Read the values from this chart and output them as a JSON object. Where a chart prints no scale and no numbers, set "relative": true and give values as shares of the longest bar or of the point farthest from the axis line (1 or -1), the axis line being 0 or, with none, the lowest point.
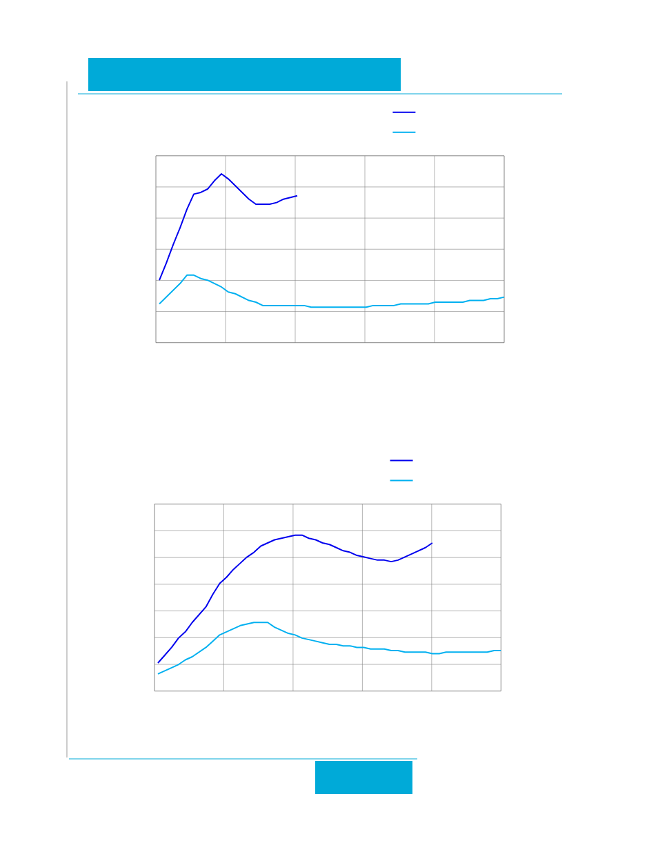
{
  "chart_data": [
    {
      "type": "line",
      "relative": true,
      "grid": true,
      "marker": "none",
      "line_style": "solid",
      "categories": [
        null,
        null,
        null,
        null,
        null,
        null,
        null,
        null,
        null,
        null,
        null,
        null,
        null,
        null,
        null,
        null,
        null,
        null,
        null,
        null,
        null,
        null,
        null,
        null,
        null,
        null,
        null,
        null,
        null,
        null,
        null,
        null,
        null,
        null,
        null,
        null,
        null,
        null,
        null,
        null,
        null,
        null,
        null,
        null,
        null,
        null,
        null,
        null,
        null,
        null,
        null
      ],
      "series": [
        {
          "color": "#0000ee",
          "values": [
            0.37,
            0.47,
            0.58,
            0.68,
            0.79,
            0.88,
            0.89,
            0.91,
            0.96,
            1,
            0.97,
            0.93,
            0.89,
            0.85,
            0.82,
            0.82,
            0.82,
            0.83,
            0.85,
            0.86,
            0.87,
            null,
            null,
            null,
            null,
            null,
            null,
            null,
            null,
            null,
            null,
            null,
            null,
            null,
            null,
            null,
            null,
            null,
            null,
            null,
            null,
            null,
            null,
            null,
            null,
            null,
            null,
            null,
            null,
            null,
            null
          ]
        },
        {
          "color": "#00b0f0",
          "values": [
            0.23,
            0.27,
            0.31,
            0.35,
            0.4,
            0.4,
            0.38,
            0.37,
            0.35,
            0.33,
            0.3,
            0.29,
            0.27,
            0.25,
            0.24,
            0.22,
            0.22,
            0.22,
            0.22,
            0.22,
            0.22,
            0.22,
            0.21,
            0.21,
            0.21,
            0.21,
            0.21,
            0.21,
            0.21,
            0.21,
            0.21,
            0.22,
            0.22,
            0.22,
            0.22,
            0.23,
            0.23,
            0.23,
            0.23,
            0.23,
            0.24,
            0.24,
            0.24,
            0.24,
            0.24,
            0.25,
            0.25,
            0.25,
            0.26,
            0.26,
            0.27
          ]
        }
      ]
    },
    {
      "type": "line",
      "relative": true,
      "grid": true,
      "marker": "none",
      "line_style": "solid",
      "categories": [
        null,
        null,
        null,
        null,
        null,
        null,
        null,
        null,
        null,
        null,
        null,
        null,
        null,
        null,
        null,
        null,
        null,
        null,
        null,
        null,
        null,
        null,
        null,
        null,
        null,
        null,
        null,
        null,
        null,
        null,
        null,
        null,
        null,
        null,
        null,
        null,
        null,
        null,
        null,
        null,
        null,
        null,
        null,
        null,
        null,
        null,
        null,
        null,
        null,
        null,
        null
      ],
      "series": [
        {
          "color": "#0000ee",
          "values": [
            0.18,
            0.23,
            0.28,
            0.34,
            0.38,
            0.44,
            0.49,
            0.54,
            0.62,
            0.69,
            0.73,
            0.78,
            0.82,
            0.86,
            0.89,
            0.93,
            0.95,
            0.97,
            0.98,
            0.99,
            1,
            1.0,
            0.98,
            0.97,
            0.95,
            0.94,
            0.92,
            0.9,
            0.89,
            0.87,
            0.86,
            0.85,
            0.84,
            0.84,
            0.83,
            0.84,
            0.86,
            0.88,
            0.9,
            0.92,
            0.95,
            null,
            null,
            null,
            null,
            null,
            null,
            null,
            null,
            null,
            null
          ]
        },
        {
          "color": "#00b0f0",
          "values": [
            0.11,
            0.13,
            0.15,
            0.17,
            0.2,
            0.22,
            0.25,
            0.28,
            0.32,
            0.36,
            0.38,
            0.4,
            0.42,
            0.43,
            0.44,
            0.44,
            0.44,
            0.41,
            0.39,
            0.37,
            0.36,
            0.34,
            0.33,
            0.32,
            0.31,
            0.3,
            0.3,
            0.29,
            0.29,
            0.28,
            0.28,
            0.27,
            0.27,
            0.27,
            0.26,
            0.26,
            0.25,
            0.25,
            0.25,
            0.25,
            0.24,
            0.24,
            0.25,
            0.25,
            0.25,
            0.25,
            0.25,
            0.25,
            0.25,
            0.26,
            0.26
          ]
        }
      ]
    }
  ]
}
